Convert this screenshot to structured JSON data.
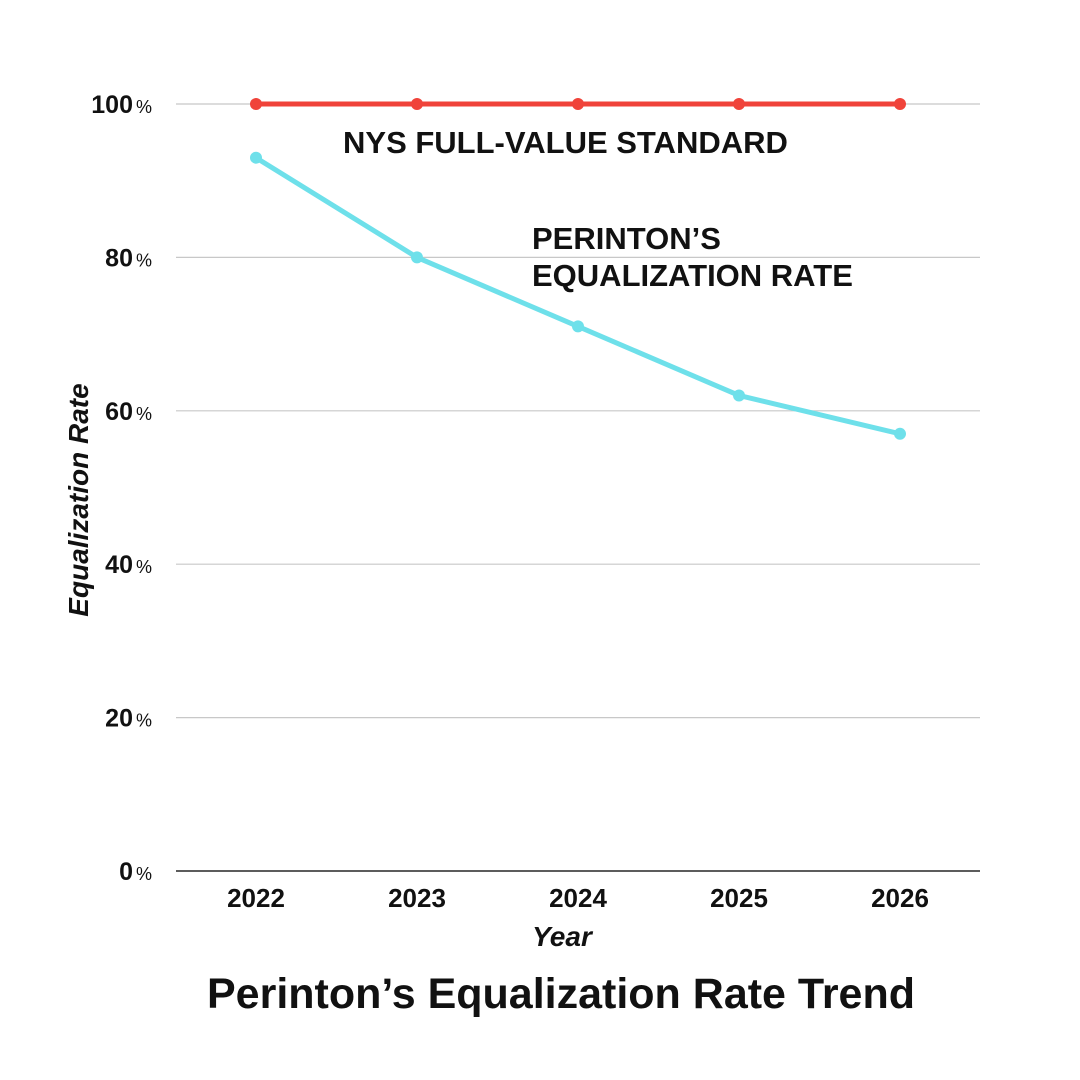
{
  "chart_data": {
    "type": "line",
    "title": "Perinton’s Equalization Rate Trend",
    "xlabel": "Year",
    "ylabel": "Equalization Rate",
    "categories": [
      "2022",
      "2023",
      "2024",
      "2025",
      "2026"
    ],
    "ylim": [
      0,
      100
    ],
    "yticks": [
      0,
      20,
      40,
      60,
      80,
      100
    ],
    "ytick_suffix": "%",
    "grid": true,
    "series": [
      {
        "name": "NYS Full-Value Standard",
        "label_lines": [
          "NYS FULL-VALUE STANDARD"
        ],
        "color": "#f0433a",
        "values": [
          100,
          100,
          100,
          100,
          100
        ]
      },
      {
        "name": "Perinton’s Equalization Rate",
        "label_lines": [
          "PERINTON’S",
          "EQUALIZATION RATE"
        ],
        "color": "#6ee0ea",
        "values": [
          93,
          80,
          71,
          62,
          57
        ]
      }
    ]
  }
}
